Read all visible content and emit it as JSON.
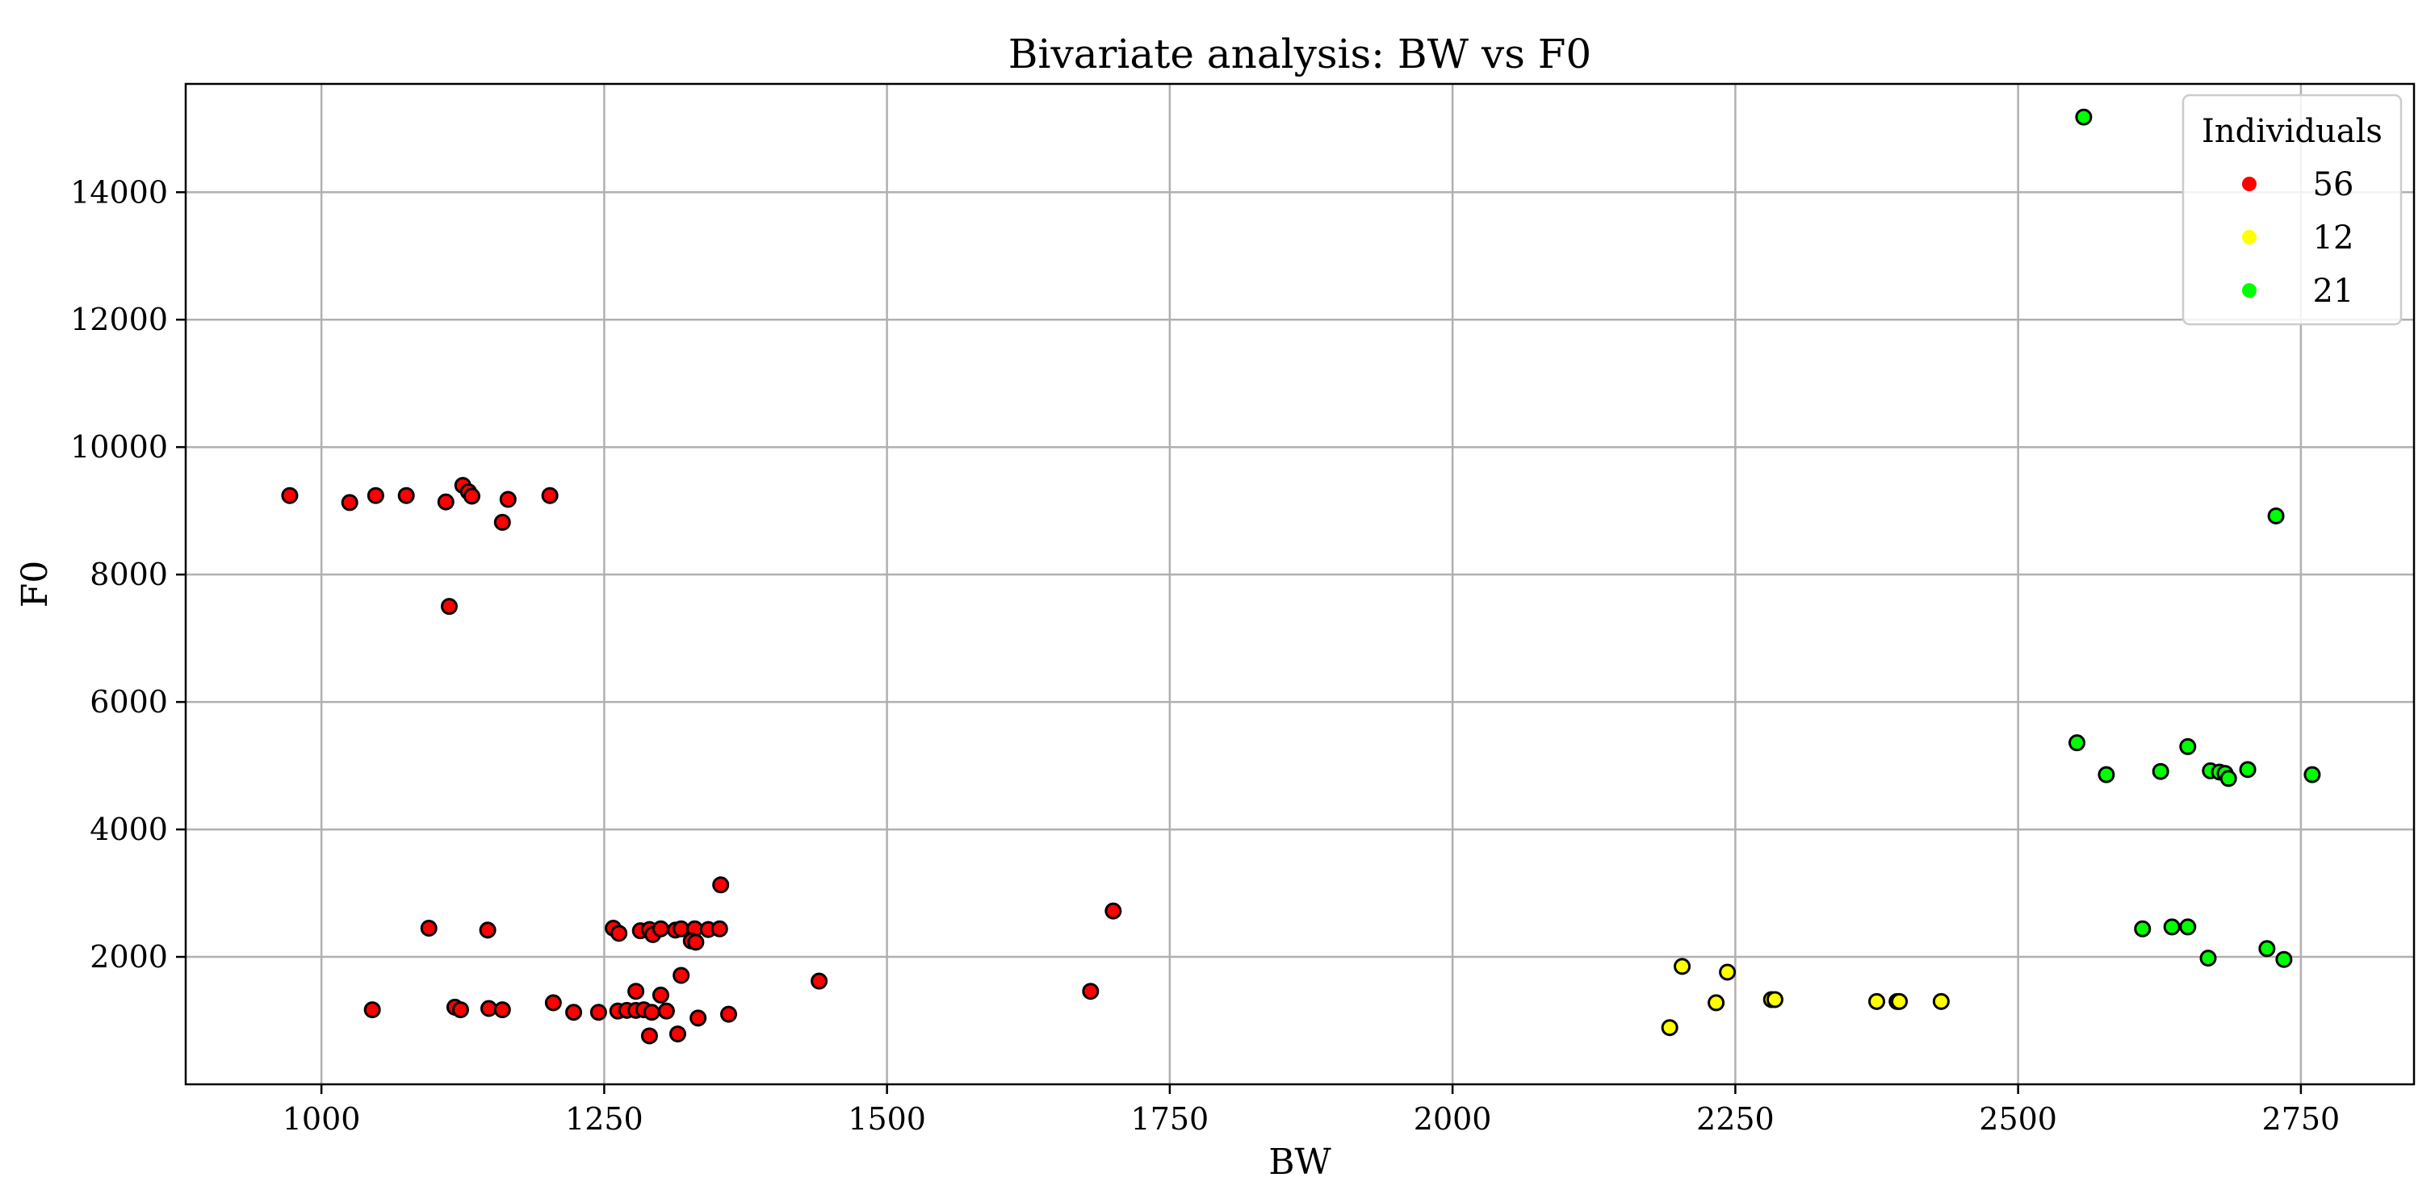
{
  "chart_data": {
    "type": "scatter",
    "title": "Bivariate analysis: BW vs F0",
    "xlabel": "BW",
    "ylabel": "F0",
    "xlim": [
      880,
      2850
    ],
    "ylim": [
      0,
      15700
    ],
    "xticks": [
      1000,
      1250,
      1500,
      1750,
      2000,
      2250,
      2500,
      2750
    ],
    "yticks": [
      2000,
      4000,
      6000,
      8000,
      10000,
      12000,
      14000
    ],
    "grid": true,
    "legend": {
      "title": "Individuals",
      "placement": "top-right"
    },
    "series": [
      {
        "name": "56",
        "color": "#ff0000",
        "points": [
          [
            972,
            9240
          ],
          [
            1025,
            9130
          ],
          [
            1048,
            9240
          ],
          [
            1075,
            9240
          ],
          [
            1110,
            9140
          ],
          [
            1125,
            9400
          ],
          [
            1130,
            9300
          ],
          [
            1133,
            9230
          ],
          [
            1160,
            8820
          ],
          [
            1165,
            9180
          ],
          [
            1202,
            9240
          ],
          [
            1113,
            7500
          ],
          [
            1095,
            2450
          ],
          [
            1147,
            2420
          ],
          [
            1045,
            1170
          ],
          [
            1118,
            1210
          ],
          [
            1123,
            1170
          ],
          [
            1148,
            1190
          ],
          [
            1160,
            1170
          ],
          [
            1205,
            1280
          ],
          [
            1223,
            1130
          ],
          [
            1245,
            1130
          ],
          [
            1262,
            1150
          ],
          [
            1270,
            1160
          ],
          [
            1278,
            1160
          ],
          [
            1285,
            1170
          ],
          [
            1292,
            1130
          ],
          [
            1305,
            1150
          ],
          [
            1278,
            1460
          ],
          [
            1300,
            1400
          ],
          [
            1318,
            1710
          ],
          [
            1290,
            760
          ],
          [
            1315,
            790
          ],
          [
            1333,
            1040
          ],
          [
            1360,
            1100
          ],
          [
            1258,
            2450
          ],
          [
            1263,
            2370
          ],
          [
            1282,
            2410
          ],
          [
            1290,
            2430
          ],
          [
            1293,
            2350
          ],
          [
            1300,
            2440
          ],
          [
            1313,
            2420
          ],
          [
            1318,
            2440
          ],
          [
            1330,
            2440
          ],
          [
            1327,
            2250
          ],
          [
            1331,
            2230
          ],
          [
            1342,
            2430
          ],
          [
            1352,
            2440
          ],
          [
            1353,
            3130
          ],
          [
            1440,
            1620
          ],
          [
            1680,
            1460
          ],
          [
            1700,
            2720
          ]
        ]
      },
      {
        "name": "12",
        "color": "#ffff00",
        "points": [
          [
            2192,
            890
          ],
          [
            2203,
            1850
          ],
          [
            2233,
            1280
          ],
          [
            2243,
            1760
          ],
          [
            2282,
            1330
          ],
          [
            2285,
            1330
          ],
          [
            2375,
            1300
          ],
          [
            2393,
            1300
          ],
          [
            2395,
            1300
          ],
          [
            2432,
            1300
          ]
        ]
      },
      {
        "name": "21",
        "color": "#00ff00",
        "points": [
          [
            2558,
            15180
          ],
          [
            2728,
            8920
          ],
          [
            2552,
            5360
          ],
          [
            2578,
            4860
          ],
          [
            2626,
            4910
          ],
          [
            2650,
            5300
          ],
          [
            2670,
            4920
          ],
          [
            2678,
            4900
          ],
          [
            2683,
            4880
          ],
          [
            2686,
            4800
          ],
          [
            2703,
            4940
          ],
          [
            2760,
            4860
          ],
          [
            2610,
            2440
          ],
          [
            2636,
            2470
          ],
          [
            2650,
            2470
          ],
          [
            2668,
            1980
          ],
          [
            2720,
            2130
          ],
          [
            2735,
            1960
          ]
        ]
      }
    ]
  }
}
